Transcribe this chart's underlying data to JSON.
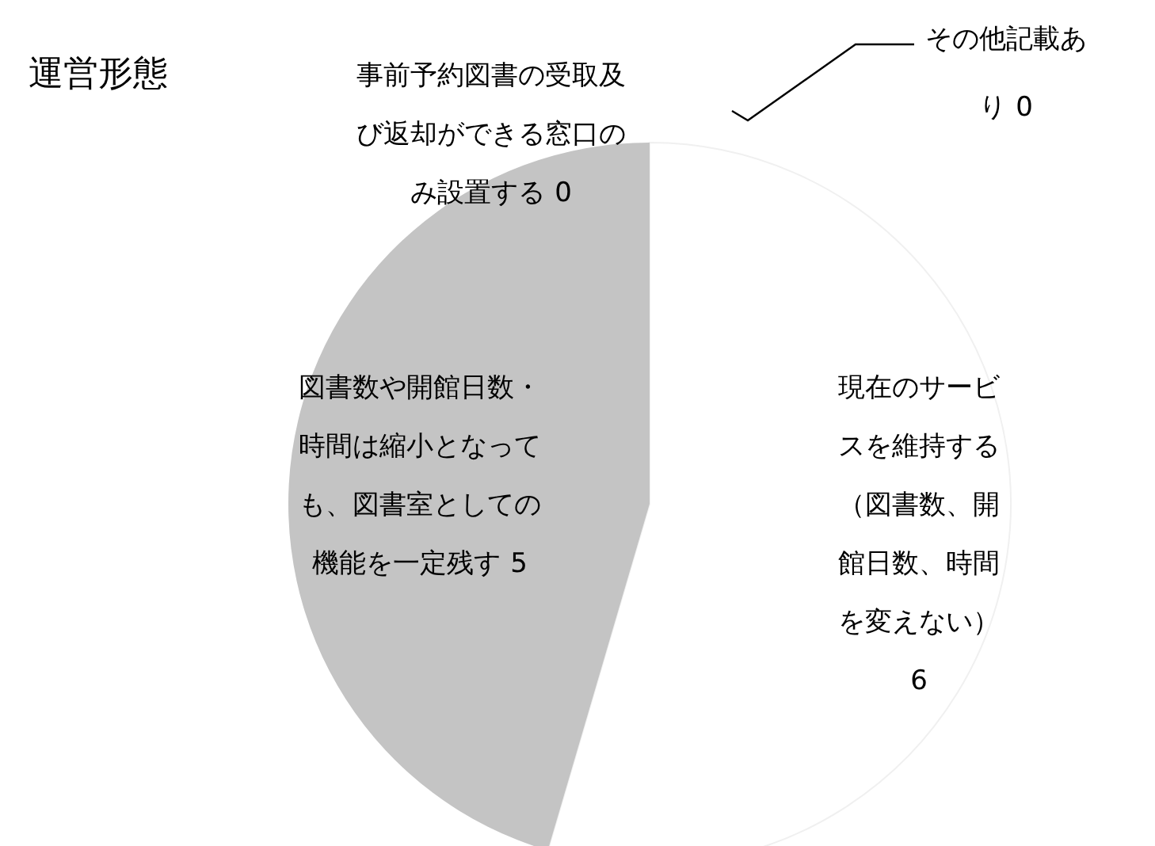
{
  "chart_data": {
    "type": "pie",
    "title": "運営形態",
    "categories": [
      "現在のサービスを維持する（図書数、開館日数、時間を変えない）",
      "図書数や開館日数・時間は縮小となっても、図書室としての機能を一定残す",
      "事前予約図書の受取及び返却ができる窓口のみ設置する",
      "その他記載あり"
    ],
    "values": [
      6,
      5,
      0,
      0
    ],
    "value_labels": [
      "6",
      "5",
      "0",
      "0"
    ],
    "colors": [
      "#ffffff",
      "#c4c4c4",
      "#8c8c8c",
      "#606060"
    ]
  }
}
